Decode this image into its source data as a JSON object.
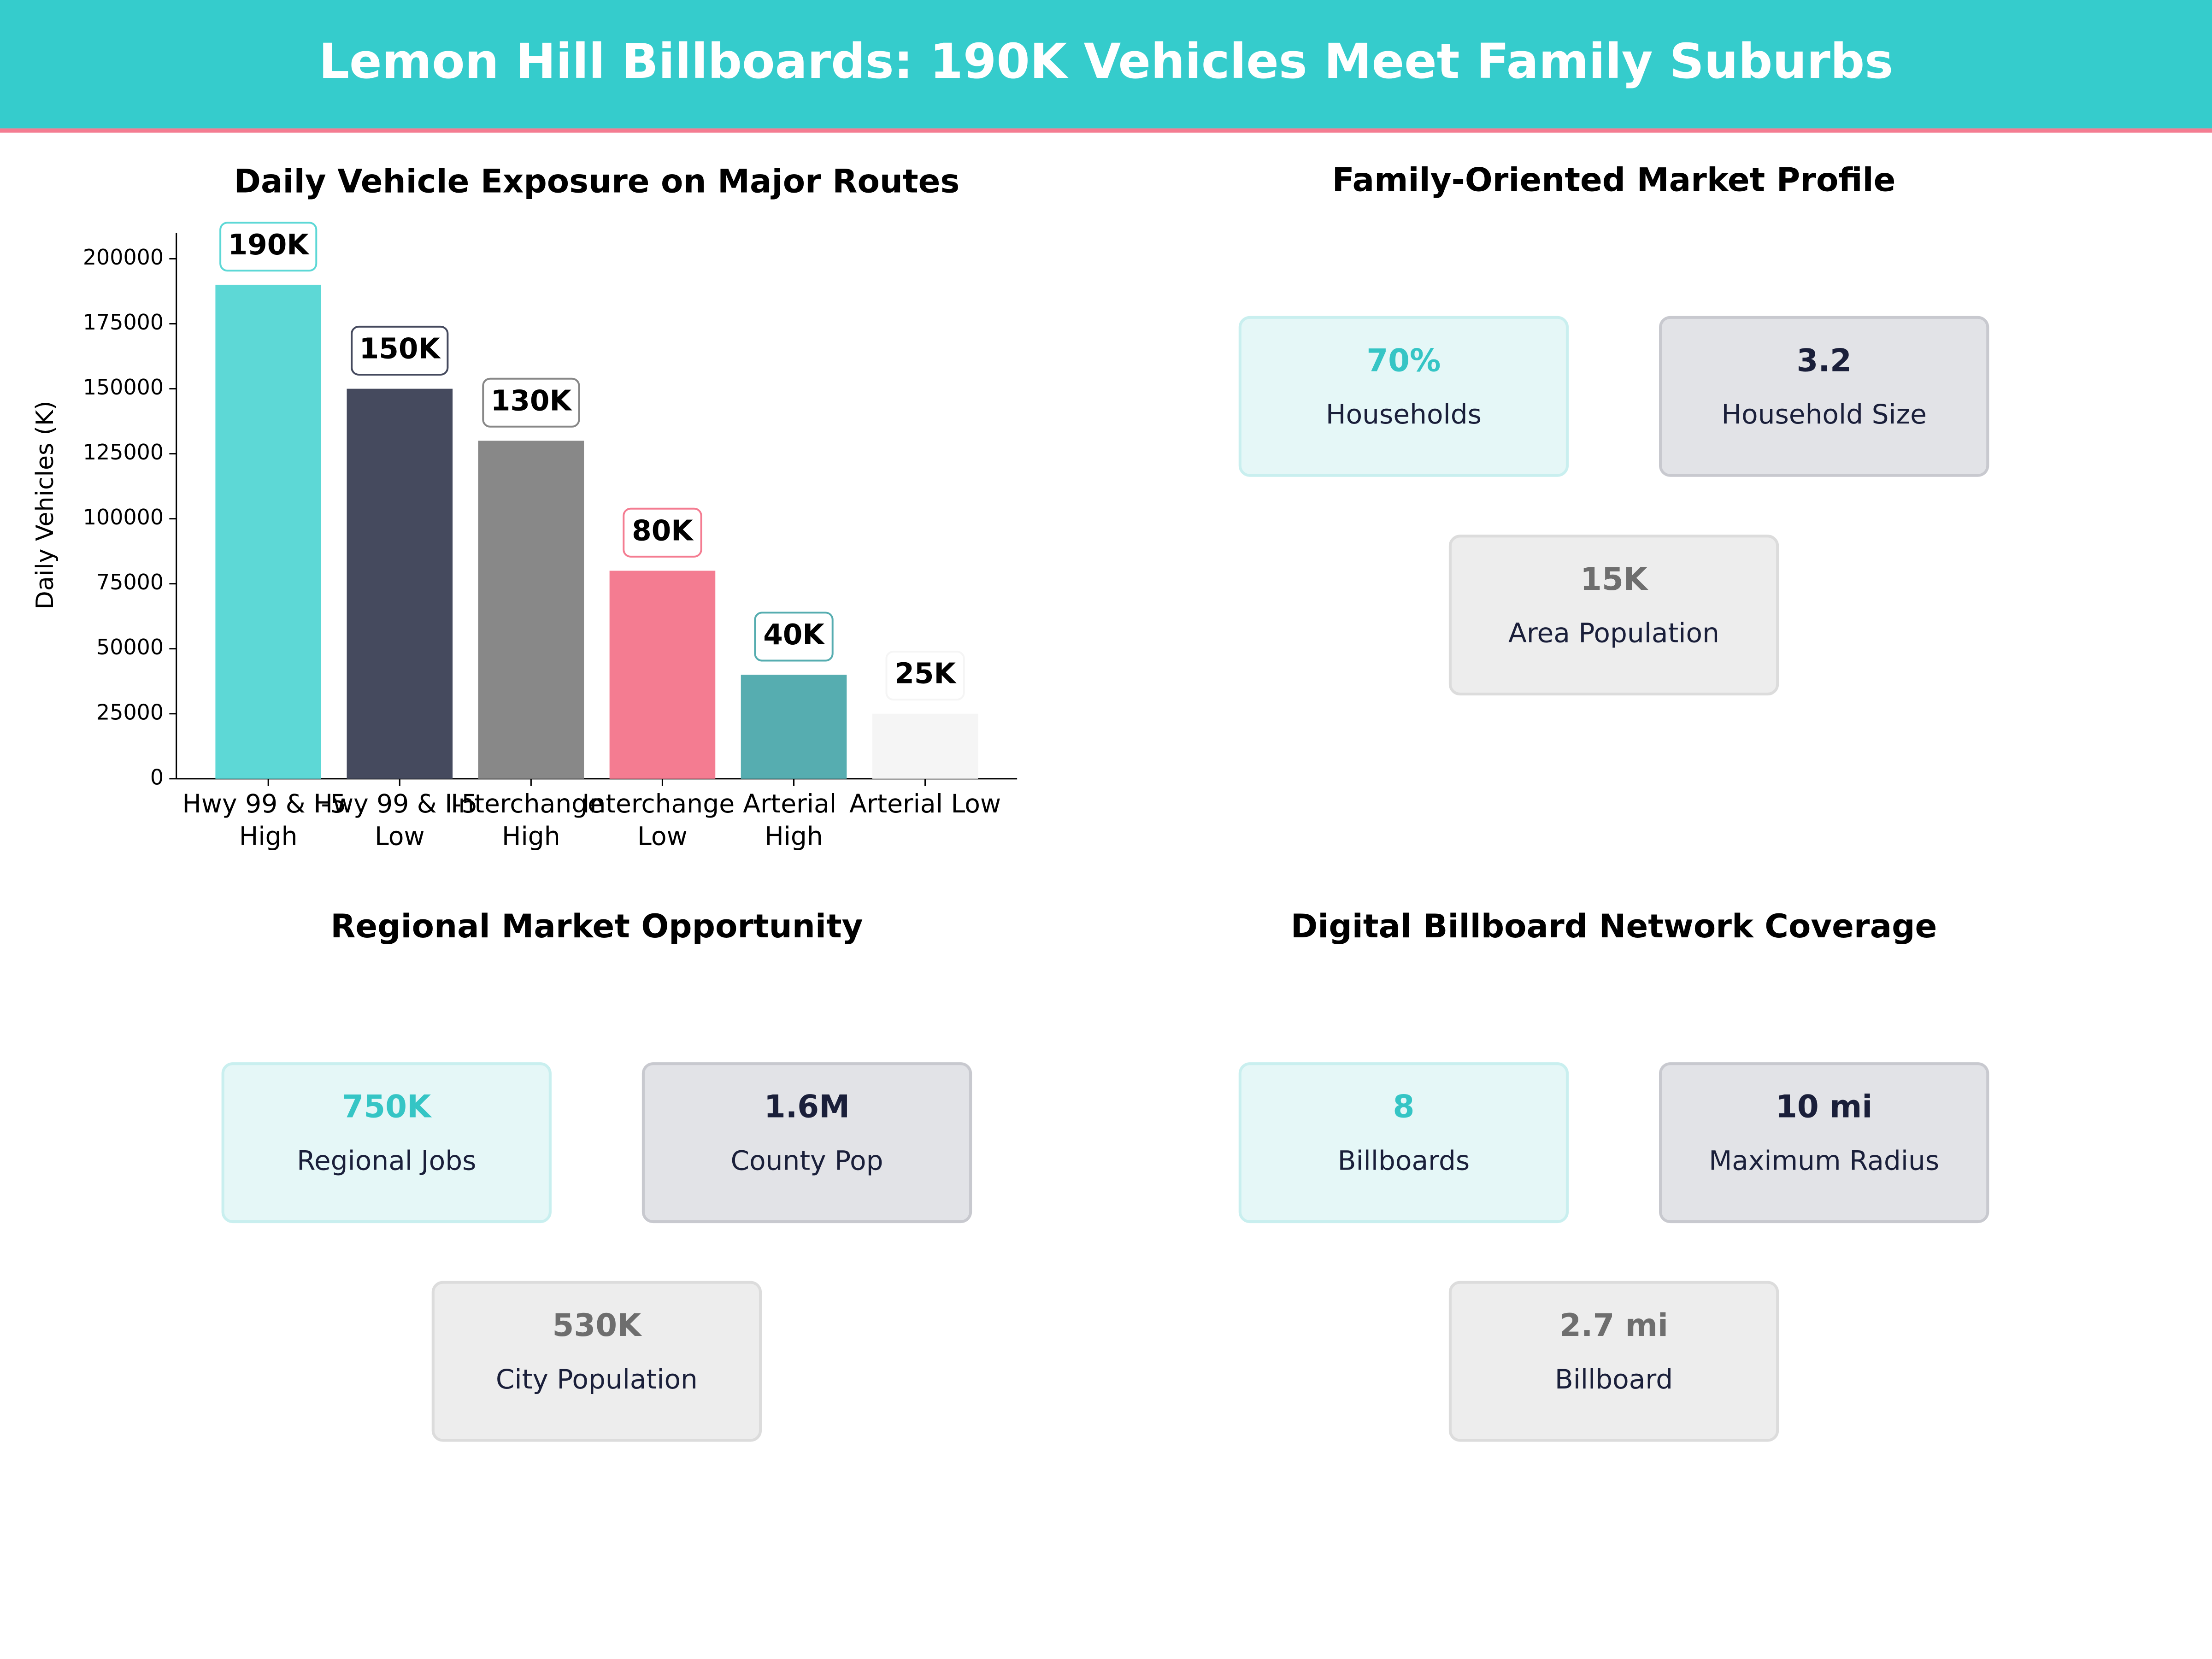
{
  "header": {
    "title": "Lemon Hill Billboards: 190K Vehicles Meet Family Suburbs"
  },
  "chart_data": {
    "type": "bar",
    "title": "Daily Vehicle Exposure on Major Routes",
    "ylabel": "Daily Vehicles (K)",
    "categories": [
      "Hwy 99 & I-5 High",
      "Hwy 99 & I-5 Low",
      "Interchange High",
      "Interchange Low",
      "Arterial High",
      "Arterial Low"
    ],
    "values": [
      190000,
      150000,
      130000,
      80000,
      40000,
      25000
    ],
    "value_labels": [
      "190K",
      "150K",
      "130K",
      "80K",
      "40K",
      "25K"
    ],
    "colors": [
      "#5dd8d6",
      "#454a5e",
      "#888888",
      "#f47c91",
      "#56adb0",
      "#f5f5f5"
    ],
    "ylim": [
      0,
      210000
    ],
    "yticks": [
      0,
      25000,
      50000,
      75000,
      100000,
      125000,
      150000,
      175000,
      200000
    ]
  },
  "panels": [
    {
      "title": "Family-Oriented Market Profile",
      "cards": [
        {
          "value": "70%",
          "label": "Households"
        },
        {
          "value": "3.2",
          "label": "Household Size"
        },
        {
          "value": "15K",
          "label": "Area Population"
        }
      ]
    },
    {
      "title": "Regional Market Opportunity",
      "cards": [
        {
          "value": "750K",
          "label": "Regional Jobs"
        },
        {
          "value": "1.6M",
          "label": "County Pop"
        },
        {
          "value": "530K",
          "label": "City Population"
        }
      ]
    },
    {
      "title": "Digital Billboard Network Coverage",
      "cards": [
        {
          "value": "8",
          "label": "Billboards"
        },
        {
          "value": "10 mi",
          "label": "Maximum Radius"
        },
        {
          "value": "2.7 mi",
          "label": "Billboard"
        }
      ]
    }
  ]
}
